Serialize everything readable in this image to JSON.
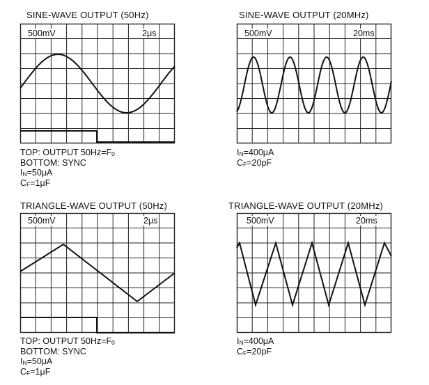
{
  "panels": [
    {
      "title": "SINE-WAVE OUTPUT (50Hz)",
      "volt_div": "500mV",
      "time_div": "2μs",
      "waveform": "sine",
      "notes": [
        {
          "text": "TOP: OUTPUT 50Hz=F",
          "sub": "0",
          "rest": ""
        },
        {
          "text": "BOTTOM: SYNC",
          "sub": "",
          "rest": ""
        },
        {
          "text": "I",
          "sub": "N",
          "rest": "=50μA"
        },
        {
          "text": "C",
          "sub": "F",
          "rest": "=1μF"
        }
      ]
    },
    {
      "title": "SINE-WAVE OUTPUT (20MHz)",
      "volt_div": "500mV",
      "time_div": "20ms",
      "waveform": "sine-fast",
      "notes": [
        {
          "text": "I",
          "sub": "N",
          "rest": "=400μA"
        },
        {
          "text": "C",
          "sub": "F",
          "rest": "=20pF"
        }
      ]
    },
    {
      "title": "TRIANGLE-WAVE OUTPUT (50Hz)",
      "volt_div": "500mV",
      "time_div": "2μs",
      "waveform": "triangle",
      "notes": [
        {
          "text": "TOP: OUTPUT 50Hz=F",
          "sub": "0",
          "rest": ""
        },
        {
          "text": "BOTTOM: SYNC",
          "sub": "",
          "rest": ""
        },
        {
          "text": "I",
          "sub": "N",
          "rest": "=50μA"
        },
        {
          "text": "C",
          "sub": "F",
          "rest": "=1μF"
        }
      ]
    },
    {
      "title": "TRIANGLE-WAVE OUTPUT (20MHz)",
      "volt_div": "500mV",
      "time_div": "20ms",
      "waveform": "triangle-fast",
      "notes": [
        {
          "text": "I",
          "sub": "N",
          "rest": "=400μA"
        },
        {
          "text": "C",
          "sub": "F",
          "rest": "=20pF"
        }
      ]
    }
  ],
  "colors": {
    "trace": "#111111",
    "grid": "#222222",
    "background": "#ffffff"
  }
}
